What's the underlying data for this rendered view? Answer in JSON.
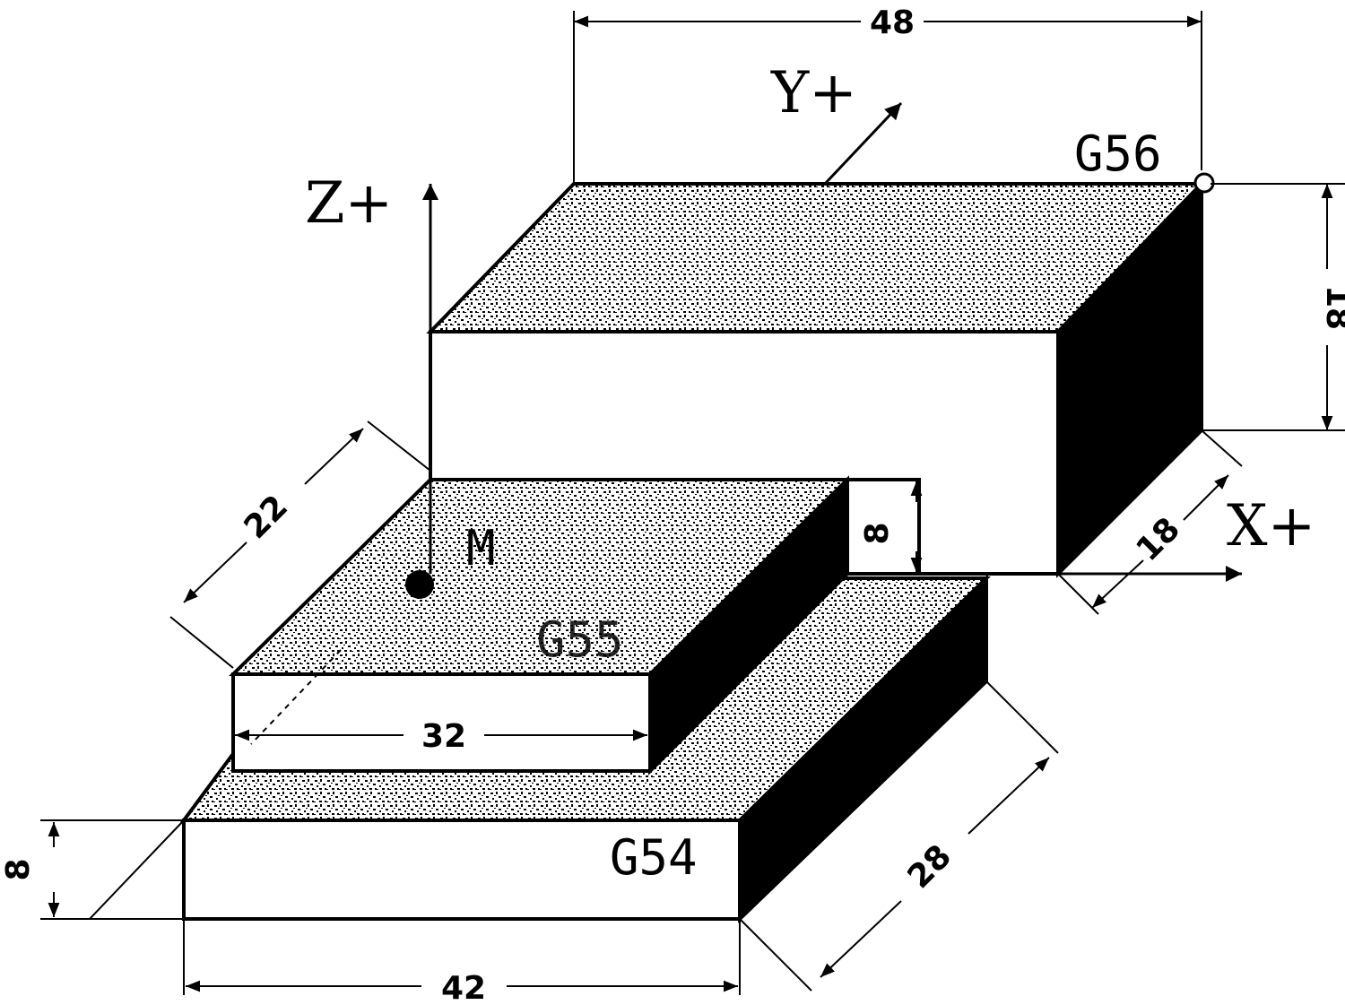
{
  "axes": {
    "x": "X+",
    "y": "Y+",
    "z": "Z+"
  },
  "work_offsets": {
    "g54": "G54",
    "g55": "G55",
    "g56": "G56",
    "machine_origin": "M"
  },
  "dimensions": {
    "top_width": "48",
    "top_height": "18",
    "top_depth": "18",
    "mid_height": "8",
    "mid_depth": "22",
    "mid_width": "32",
    "base_height": "8",
    "base_width": "42",
    "base_depth": "28"
  },
  "colors": {
    "ink": "#000000",
    "paper": "#ffffff",
    "speckle": "#d9d9d9"
  }
}
